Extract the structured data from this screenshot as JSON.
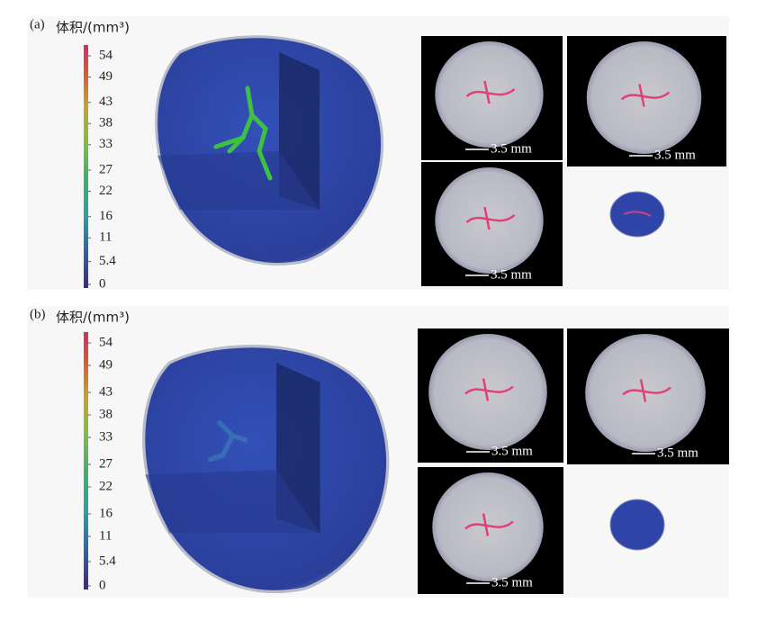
{
  "panels": [
    {
      "label": "(a)",
      "colorbar": {
        "title": "体积/(mm³)",
        "ticks": [
          54,
          49,
          43,
          38,
          33,
          27,
          22,
          16,
          11,
          5.4,
          0
        ]
      },
      "scale_bars": [
        "3.5 mm",
        "3.5 mm",
        "3.5 mm"
      ]
    },
    {
      "label": "(b)",
      "colorbar": {
        "title": "体积/(mm³)",
        "ticks": [
          54,
          49,
          43,
          38,
          33,
          27,
          22,
          16,
          11,
          5.4,
          0
        ]
      },
      "scale_bars": [
        "3.5 mm",
        "3.5 mm",
        "3.5 mm"
      ]
    }
  ]
}
